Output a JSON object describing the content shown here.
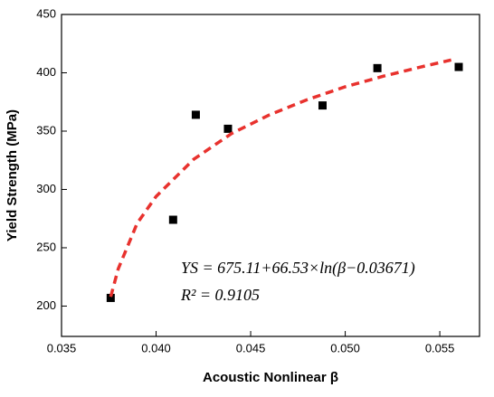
{
  "chart_data": {
    "type": "scatter",
    "x_label": "Acoustic Nonlinear β",
    "y_label": "Yield Strength (MPa)",
    "annotations": [
      "YS = 675.11+66.53×ln(β−0.03671)",
      "R² = 0.9105"
    ],
    "xlim": [
      0.035,
      0.0571
    ],
    "ylim": [
      174,
      450
    ],
    "xticks": [
      0.035,
      {
        "value": 0.04,
        "label": "0.040"
      },
      0.045,
      {
        "value": 0.05,
        "label": "0.050"
      },
      0.055
    ],
    "yticks": [
      200,
      250,
      300,
      350,
      400,
      450
    ],
    "series": [
      {
        "color": "#000000",
        "marker": "square",
        "x": [
          0.0376,
          0.0409,
          0.0421,
          0.0438,
          0.0488,
          0.0517,
          0.056
        ],
        "values": [
          207,
          274,
          364,
          352,
          372,
          404,
          405
        ]
      },
      {
        "color": "#e8322e",
        "line": "dashed",
        "x": [
          0.0376,
          0.038,
          0.039,
          0.04,
          0.042,
          0.044,
          0.046,
          0.048,
          0.05,
          0.052,
          0.054,
          0.0556
        ],
        "values": [
          208,
          232,
          271,
          294,
          326,
          348,
          364,
          377,
          388,
          397,
          405,
          411
        ]
      }
    ]
  }
}
